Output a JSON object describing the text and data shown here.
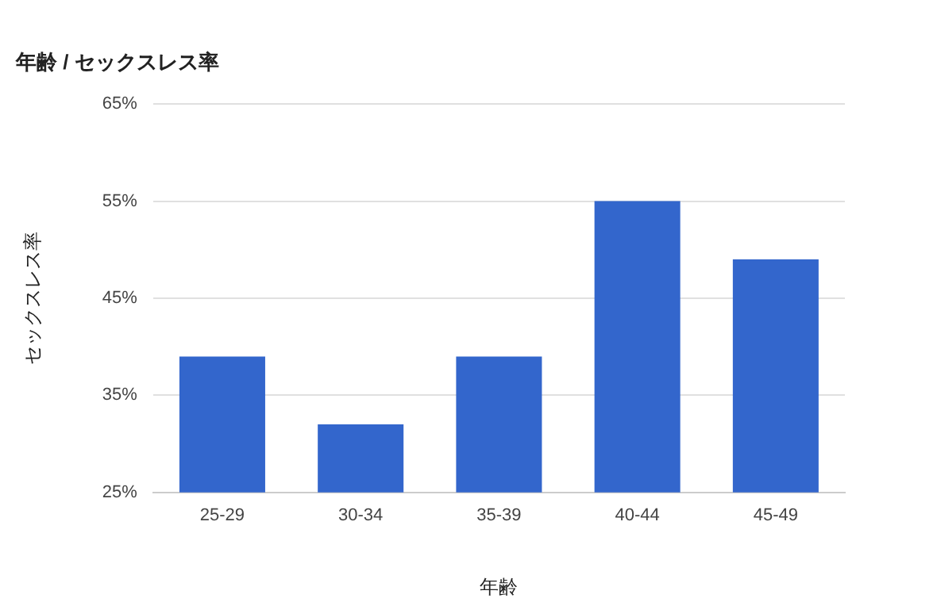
{
  "chart_data": {
    "type": "bar",
    "title": "年齢 / セックスレス率",
    "xlabel": "年齢",
    "ylabel": "セックスレス率",
    "categories": [
      "25-29",
      "30-34",
      "35-39",
      "40-44",
      "45-49"
    ],
    "values": [
      39,
      32,
      39,
      55,
      49
    ],
    "color": "#3366cc",
    "ylim": [
      25,
      65
    ],
    "yticks": [
      {
        "value": 25,
        "label": "25%"
      },
      {
        "value": 35,
        "label": "35%"
      },
      {
        "value": 45,
        "label": "45%"
      },
      {
        "value": 55,
        "label": "55%"
      },
      {
        "value": 65,
        "label": "65%"
      }
    ],
    "grid": "y",
    "legend": false
  }
}
